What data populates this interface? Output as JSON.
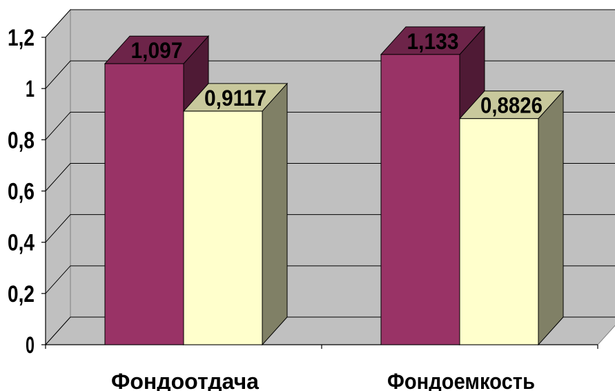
{
  "chart_data": {
    "type": "bar",
    "categories": [
      "Фондоотдача",
      "Фондоемкость"
    ],
    "series": [
      {
        "values": [
          1.097,
          1.133
        ],
        "labels": [
          "1,097",
          "1,133"
        ],
        "color": "#993366",
        "top_color": "#6d2449",
        "side_color": "#4f1a35"
      },
      {
        "values": [
          0.9117,
          0.8826
        ],
        "labels": [
          "0,9117",
          "0,8826"
        ],
        "color": "#ffffcc",
        "top_color": "#c8c89c",
        "side_color": "#808066"
      }
    ],
    "ylim": [
      0,
      1.2
    ],
    "yticks": [
      0,
      0.2,
      0.4,
      0.6,
      0.8,
      1,
      1.2
    ],
    "ytick_labels": [
      "0",
      "0,2",
      "0,4",
      "0,6",
      "0,8",
      "1",
      "1,2"
    ],
    "grid": true,
    "title": "",
    "xlabel": "",
    "ylabel": "",
    "wall_color": "#c0c0c0",
    "floor_color": "#c0c0c0"
  }
}
